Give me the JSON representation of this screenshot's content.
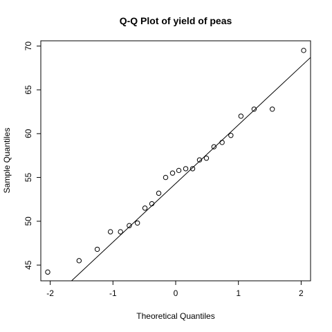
{
  "chart_data": {
    "type": "scatter",
    "title": "Q-Q Plot of yield of peas",
    "xlabel": "Theoretical Quantiles",
    "ylabel": "Sample Quantiles",
    "xlim": [
      -2.15,
      2.15
    ],
    "ylim": [
      43.2,
      70.6
    ],
    "x_ticks": [
      -2,
      -1,
      0,
      1,
      2
    ],
    "x_tick_labels": [
      "-2",
      "-1",
      "0",
      "1",
      "2"
    ],
    "y_ticks": [
      45,
      50,
      55,
      60,
      65,
      70
    ],
    "y_tick_labels": [
      "45",
      "50",
      "55",
      "60",
      "65",
      "70"
    ],
    "grid": false,
    "points": [
      {
        "x": -2.04,
        "y": 44.2
      },
      {
        "x": -1.54,
        "y": 45.5
      },
      {
        "x": -1.25,
        "y": 46.8
      },
      {
        "x": -1.04,
        "y": 48.8
      },
      {
        "x": -0.88,
        "y": 48.8
      },
      {
        "x": -0.74,
        "y": 49.5
      },
      {
        "x": -0.61,
        "y": 49.8
      },
      {
        "x": -0.49,
        "y": 51.5
      },
      {
        "x": -0.38,
        "y": 52.0
      },
      {
        "x": -0.27,
        "y": 53.2
      },
      {
        "x": -0.16,
        "y": 55.0
      },
      {
        "x": -0.05,
        "y": 55.5
      },
      {
        "x": 0.05,
        "y": 55.8
      },
      {
        "x": 0.16,
        "y": 56.0
      },
      {
        "x": 0.27,
        "y": 56.0
      },
      {
        "x": 0.38,
        "y": 57.0
      },
      {
        "x": 0.49,
        "y": 57.2
      },
      {
        "x": 0.61,
        "y": 58.5
      },
      {
        "x": 0.74,
        "y": 59.0
      },
      {
        "x": 0.88,
        "y": 59.8
      },
      {
        "x": 1.04,
        "y": 62.0
      },
      {
        "x": 1.25,
        "y": 62.8
      },
      {
        "x": 1.54,
        "y": 62.8
      },
      {
        "x": 2.04,
        "y": 69.5
      }
    ],
    "reference_line": {
      "x": [
        -1.66,
        2.15
      ],
      "y": [
        43.2,
        68.7
      ]
    }
  }
}
